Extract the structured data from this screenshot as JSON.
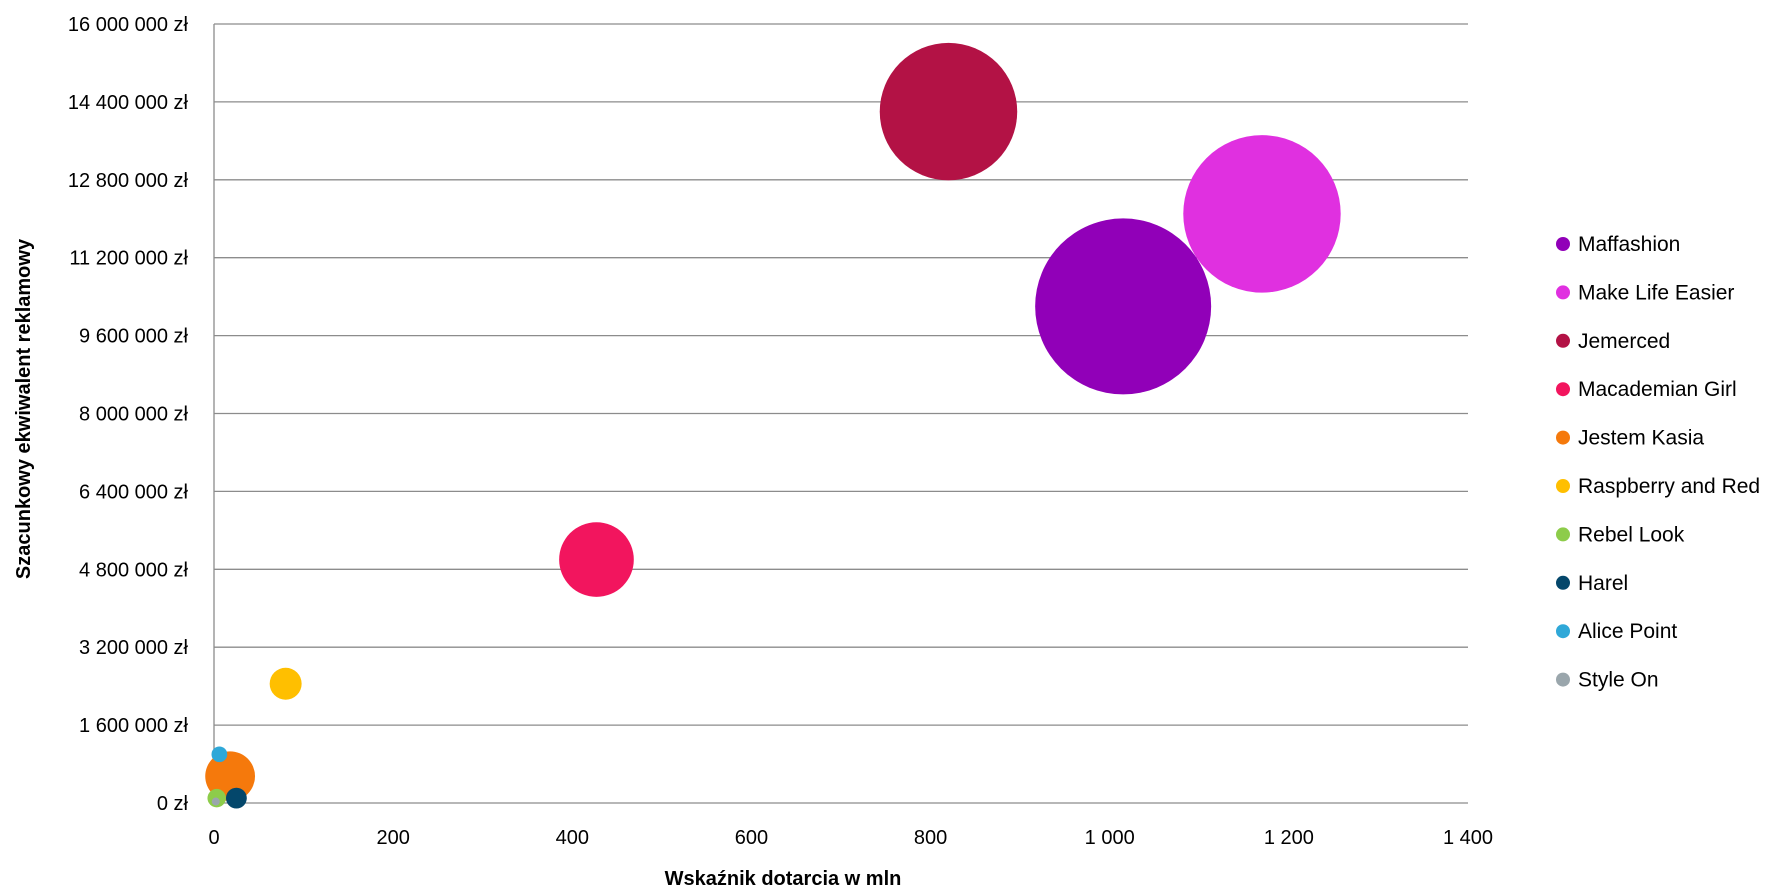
{
  "chart_data": {
    "type": "bubble",
    "xlabel": "Wskaźnik dotarcia w mln",
    "ylabel": "Szacunkowy ekwiwalent reklamowy",
    "xlim": [
      0,
      1400
    ],
    "ylim": [
      0,
      16000000
    ],
    "x_ticks": [
      0,
      200,
      400,
      600,
      800,
      1000,
      1200,
      1400
    ],
    "x_tick_labels": [
      "0",
      "200",
      "400",
      "600",
      "800",
      "1 000",
      "1 200",
      "1 400"
    ],
    "y_ticks": [
      0,
      1600000,
      3200000,
      4800000,
      6400000,
      8000000,
      9600000,
      11200000,
      12800000,
      14400000,
      16000000
    ],
    "y_tick_labels": [
      "0 zł",
      "1 600 000 zł",
      "3 200 000 zł",
      "4 800 000 zł",
      "6 400 000 zł",
      "8 000 000 zł",
      "9 600 000 zł",
      "11 200 000 zł",
      "12 800 000 zł",
      "14 400 000 zł",
      "16 000 000 zł"
    ],
    "grid": "horizontal",
    "legend_position": "right",
    "series": [
      {
        "name": "Maffashion",
        "x": 1015,
        "y": 10200000,
        "size": 100,
        "color": "#9100b8"
      },
      {
        "name": "Make Life Easier",
        "x": 1170,
        "y": 12100000,
        "size": 80,
        "color": "#e030e0"
      },
      {
        "name": "Jemerced",
        "x": 820,
        "y": 14200000,
        "size": 61,
        "color": "#b31245"
      },
      {
        "name": "Macademian Girl",
        "x": 427,
        "y": 5000000,
        "size": 18,
        "color": "#f2155e"
      },
      {
        "name": "Jestem Kasia",
        "x": 18,
        "y": 550000,
        "size": 8,
        "color": "#f5790c"
      },
      {
        "name": "Raspberry and Red",
        "x": 80,
        "y": 2450000,
        "size": 3.3,
        "color": "#ffbf00"
      },
      {
        "name": "Rebel Look",
        "x": 3,
        "y": 100000,
        "size": 1.1,
        "color": "#8dcc4a"
      },
      {
        "name": "Harel",
        "x": 25,
        "y": 100000,
        "size": 1.4,
        "color": "#04476b"
      },
      {
        "name": "Alice Point",
        "x": 6,
        "y": 1000000,
        "size": 0.8,
        "color": "#2fa8d8"
      },
      {
        "name": "Style On",
        "x": 2,
        "y": 30000,
        "size": 0.2,
        "color": "#9aa6ac"
      }
    ]
  }
}
